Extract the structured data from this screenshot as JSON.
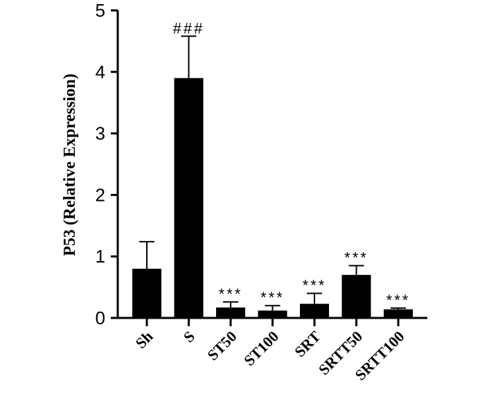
{
  "chart_data": {
    "type": "bar",
    "title": "",
    "xlabel": "",
    "ylabel": "P53 (Relative Expression)",
    "ylim": [
      0,
      5
    ],
    "yticks": [
      0,
      1,
      2,
      3,
      4,
      5
    ],
    "grid": false,
    "categories": [
      "Sh",
      "S",
      "ST50",
      "ST100",
      "SRT",
      "SRTT50",
      "SRTT100"
    ],
    "values": [
      0.8,
      3.9,
      0.17,
      0.12,
      0.23,
      0.7,
      0.14
    ],
    "errors": [
      0.44,
      0.68,
      0.09,
      0.08,
      0.17,
      0.15,
      0.02
    ],
    "annotations": [
      "",
      "###",
      "***",
      "***",
      "***",
      "***",
      "***"
    ],
    "bar_color": "#000000"
  }
}
